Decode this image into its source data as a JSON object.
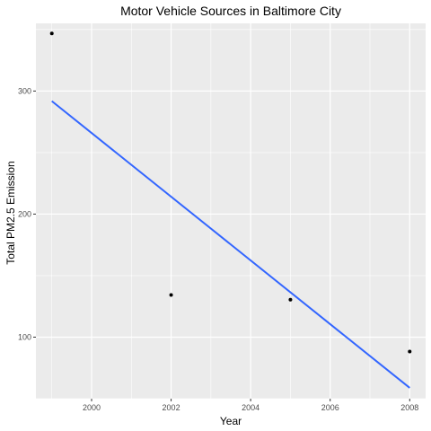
{
  "chart_data": {
    "type": "scatter",
    "title": "Motor Vehicle Sources in Baltimore City",
    "xlabel": "Year",
    "ylabel": "Total PM2.5 Emission",
    "xlim": [
      1998.6,
      2008.4
    ],
    "ylim": [
      50,
      355
    ],
    "x_ticks": [
      2000,
      2002,
      2004,
      2006,
      2008
    ],
    "x_tick_labels": [
      "2000",
      "2002",
      "2004",
      "2006",
      "2008"
    ],
    "y_ticks": [
      100,
      200,
      300
    ],
    "y_tick_labels": [
      "100",
      "200",
      "300"
    ],
    "points": [
      {
        "x": 1999,
        "y": 346.8
      },
      {
        "x": 2002,
        "y": 134.3
      },
      {
        "x": 2005,
        "y": 130.4
      },
      {
        "x": 2008,
        "y": 88.3
      }
    ],
    "trend_line": {
      "x": [
        1999,
        2008
      ],
      "y": [
        291.8,
        58.8
      ]
    },
    "grid": true,
    "colors": {
      "panel": "#ebebeb",
      "grid_major": "#ffffff",
      "point": "#000000",
      "trend": "#3366ff"
    }
  }
}
